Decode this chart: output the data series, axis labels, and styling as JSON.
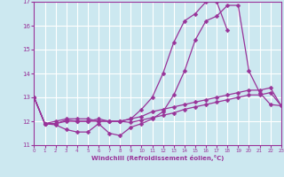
{
  "xlabel": "Windchill (Refroidissement éolien,°C)",
  "bg_color": "#cce8f0",
  "grid_color": "#ffffff",
  "line_color": "#993399",
  "xlim": [
    0,
    23
  ],
  "ylim": [
    11,
    17
  ],
  "yticks": [
    11,
    12,
    13,
    14,
    15,
    16,
    17
  ],
  "xticks": [
    0,
    1,
    2,
    3,
    4,
    5,
    6,
    7,
    8,
    9,
    10,
    11,
    12,
    13,
    14,
    15,
    16,
    17,
    18,
    19,
    20,
    21,
    22,
    23
  ],
  "lines": [
    {
      "x": [
        0,
        1,
        2,
        3,
        4,
        5,
        6,
        7,
        8,
        9,
        10,
        11,
        12,
        13,
        14,
        15,
        16,
        17,
        18,
        19,
        20,
        21,
        22,
        23
      ],
      "y": [
        13.0,
        11.9,
        11.85,
        11.65,
        11.55,
        11.55,
        11.9,
        11.5,
        11.4,
        11.75,
        11.9,
        12.1,
        12.4,
        13.1,
        14.1,
        15.4,
        16.2,
        16.4,
        16.85,
        16.85,
        14.1,
        13.2,
        12.7,
        12.65
      ]
    },
    {
      "x": [
        0,
        1,
        2,
        3,
        4,
        5,
        6,
        7,
        8,
        9,
        10,
        11,
        12,
        13,
        14,
        15,
        16,
        17,
        18,
        19,
        20,
        21,
        22,
        23
      ],
      "y": [
        13.0,
        11.9,
        11.9,
        12.05,
        12.0,
        12.0,
        12.0,
        12.0,
        12.0,
        11.95,
        12.05,
        12.15,
        12.25,
        12.35,
        12.5,
        12.6,
        12.7,
        12.8,
        12.9,
        13.0,
        13.1,
        13.1,
        13.2,
        12.65
      ]
    },
    {
      "x": [
        0,
        1,
        2,
        3,
        4,
        5,
        6,
        7,
        8,
        9,
        10,
        11,
        12,
        13,
        14,
        15,
        16,
        17,
        18,
        19,
        20,
        21,
        22,
        23
      ],
      "y": [
        13.0,
        11.9,
        11.9,
        12.0,
        12.0,
        12.0,
        12.1,
        12.0,
        12.0,
        12.1,
        12.2,
        12.4,
        12.5,
        12.6,
        12.7,
        12.8,
        12.9,
        13.0,
        13.1,
        13.2,
        13.3,
        13.3,
        13.4,
        12.65
      ]
    },
    {
      "x": [
        0,
        1,
        2,
        3,
        4,
        5,
        6,
        7,
        8,
        9,
        10,
        11,
        12,
        13,
        14,
        15,
        16,
        17,
        18
      ],
      "y": [
        13.0,
        11.9,
        12.0,
        12.1,
        12.1,
        12.1,
        12.0,
        12.0,
        12.0,
        12.1,
        12.5,
        13.0,
        14.0,
        15.3,
        16.2,
        16.5,
        17.0,
        17.0,
        15.8
      ]
    }
  ],
  "marker": "D",
  "markersize": 2.5,
  "linewidth": 0.9
}
